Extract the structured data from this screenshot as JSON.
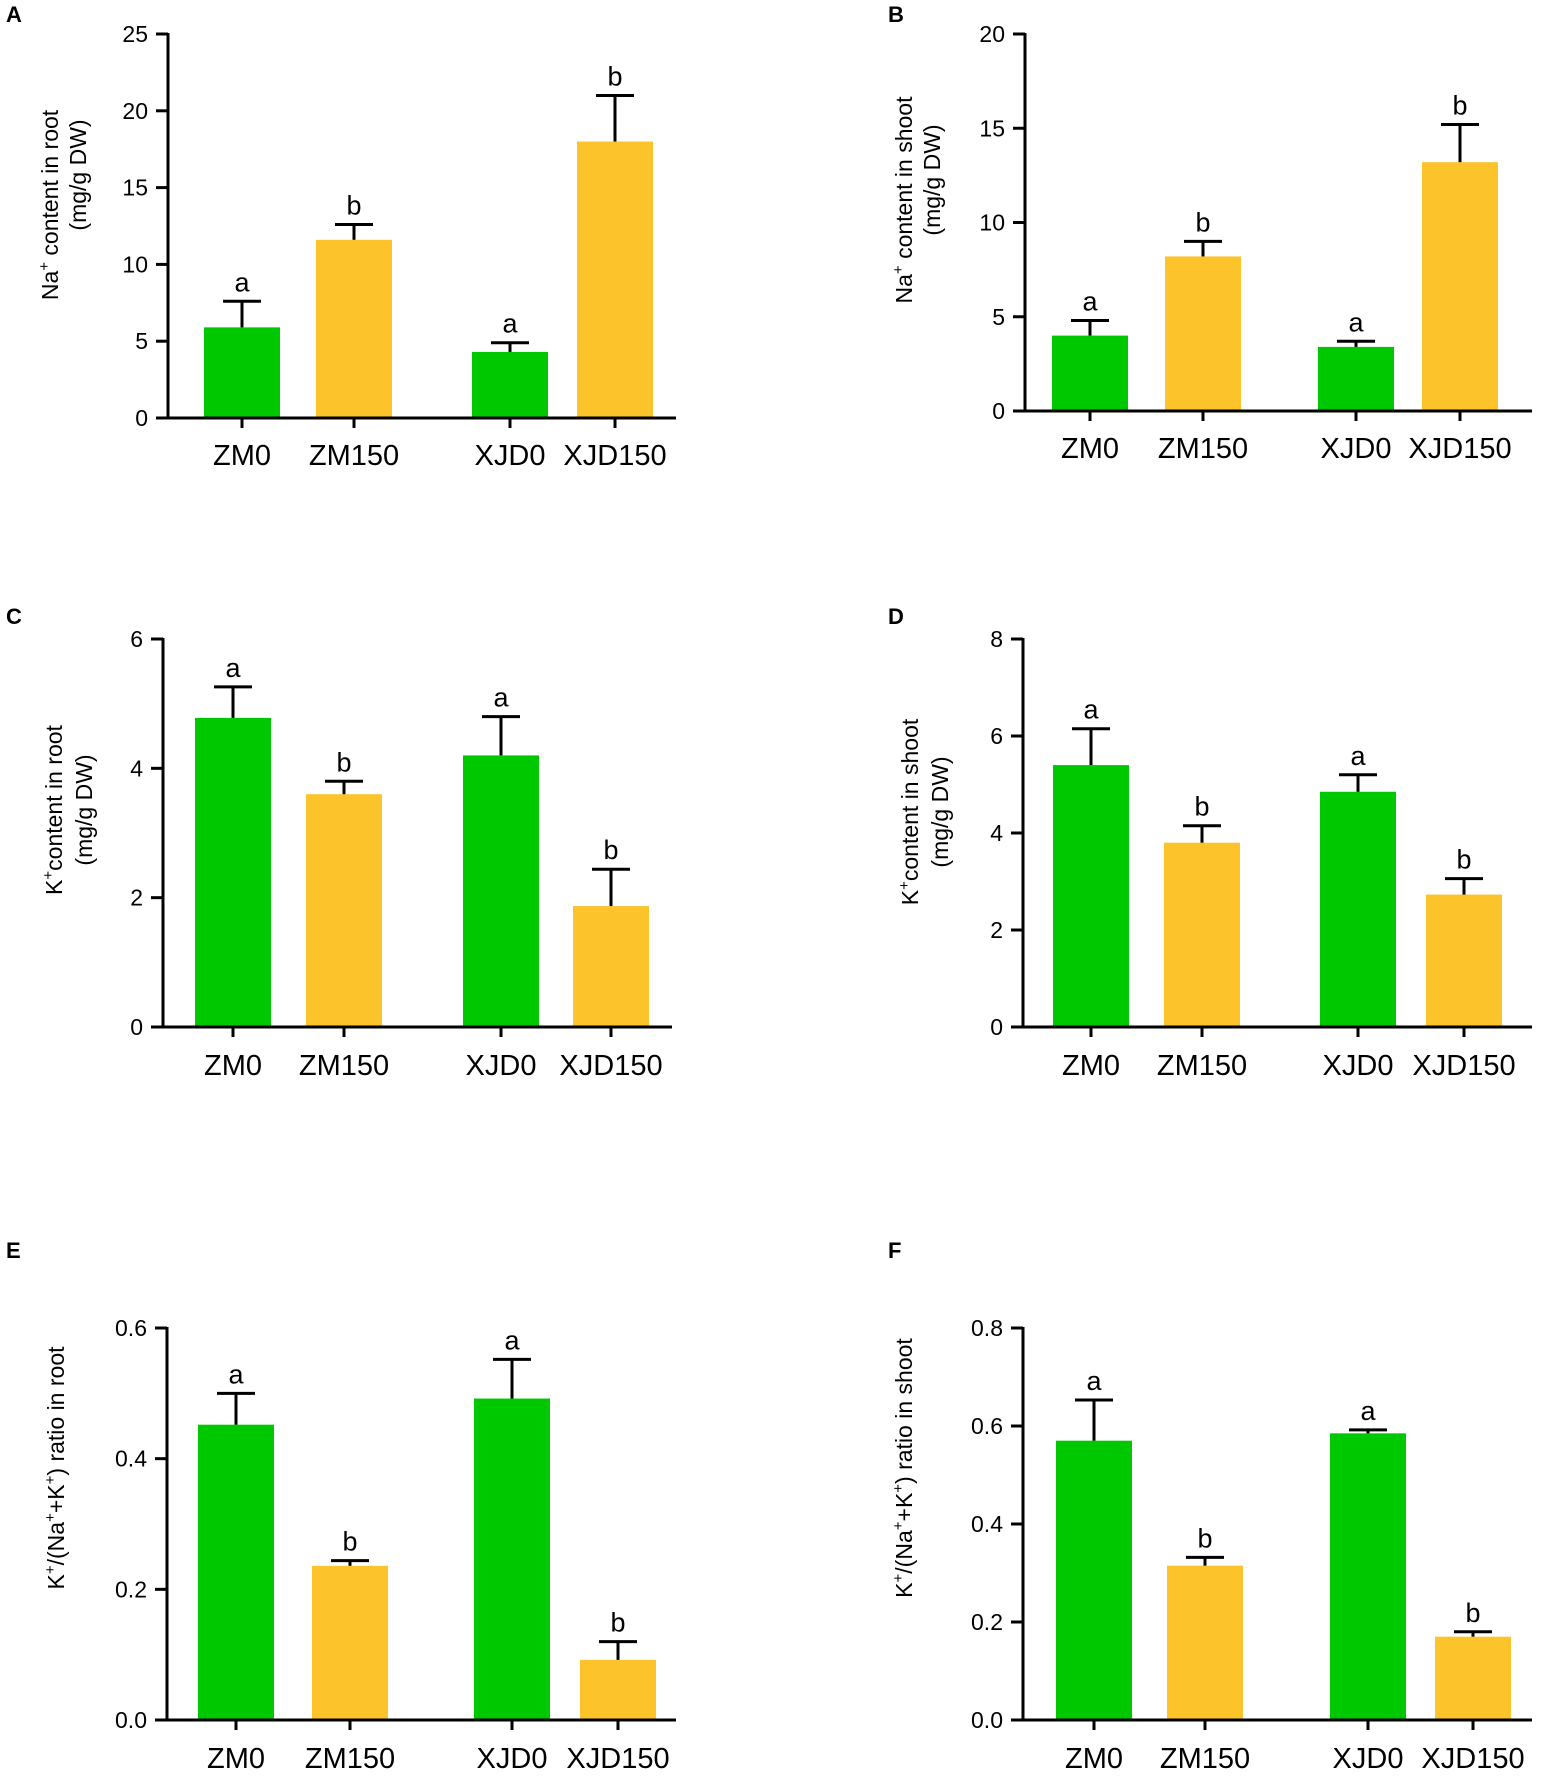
{
  "colors": {
    "green": "#00c800",
    "yellow": "#fcc32b",
    "axis": "#000000"
  },
  "chart_data": [
    {
      "panel": "A",
      "type": "bar",
      "categories": [
        "ZM0",
        "ZM150",
        "XJD0",
        "XJD150"
      ],
      "values": [
        5.9,
        11.6,
        4.3,
        18.0
      ],
      "errors": [
        1.7,
        1.0,
        0.6,
        3.0
      ],
      "significance": [
        "a",
        "b",
        "a",
        "b"
      ],
      "ylim": [
        0,
        25
      ],
      "yticks": [
        0,
        5,
        10,
        15,
        20,
        25
      ],
      "ylabel": {
        "pre": "Na",
        "sup": "+",
        "post": " content in root",
        "line2": "(mg/g DW)"
      }
    },
    {
      "panel": "B",
      "type": "bar",
      "categories": [
        "ZM0",
        "ZM150",
        "XJD0",
        "XJD150"
      ],
      "values": [
        4.0,
        8.2,
        3.4,
        13.2
      ],
      "errors": [
        0.8,
        0.8,
        0.3,
        2.0
      ],
      "significance": [
        "a",
        "b",
        "a",
        "b"
      ],
      "ylim": [
        0,
        20
      ],
      "yticks": [
        0,
        5,
        10,
        15,
        20
      ],
      "ylabel": {
        "pre": "Na",
        "sup": "+",
        "post": " content in shoot",
        "line2": "(mg/g DW)"
      }
    },
    {
      "panel": "C",
      "type": "bar",
      "categories": [
        "ZM0",
        "ZM150",
        "XJD0",
        "XJD150"
      ],
      "values": [
        4.78,
        3.6,
        4.2,
        1.87
      ],
      "errors": [
        0.48,
        0.2,
        0.6,
        0.57
      ],
      "significance": [
        "a",
        "b",
        "a",
        "b"
      ],
      "ylim": [
        0,
        6
      ],
      "yticks": [
        0,
        2,
        4,
        6
      ],
      "ylabel": {
        "pre": "K",
        "sup": "+",
        "post": "content in root",
        "line2": "(mg/g DW)"
      }
    },
    {
      "panel": "D",
      "type": "bar",
      "categories": [
        "ZM0",
        "ZM150",
        "XJD0",
        "XJD150"
      ],
      "values": [
        5.4,
        3.8,
        4.85,
        2.73
      ],
      "errors": [
        0.75,
        0.35,
        0.35,
        0.33
      ],
      "significance": [
        "a",
        "b",
        "a",
        "b"
      ],
      "ylim": [
        0,
        8
      ],
      "yticks": [
        0,
        2,
        4,
        6,
        8
      ],
      "ylabel": {
        "pre": "K",
        "sup": "+",
        "post": "content in shoot",
        "line2": "(mg/g DW)"
      }
    },
    {
      "panel": "E",
      "type": "bar",
      "categories": [
        "ZM0",
        "ZM150",
        "XJD0",
        "XJD150"
      ],
      "values": [
        0.452,
        0.236,
        0.492,
        0.092
      ],
      "errors": [
        0.048,
        0.008,
        0.06,
        0.028
      ],
      "significance": [
        "a",
        "b",
        "a",
        "b"
      ],
      "ylim": [
        0,
        0.6
      ],
      "yticks": [
        "0.0",
        "0.2",
        "0.4",
        "0.6"
      ],
      "ylabel": {
        "pre": "K",
        "sup": "+",
        "post": "/(Na",
        "sup2": "+",
        "mid": "+K",
        "sup3": "+",
        "end": ") ratio in root"
      }
    },
    {
      "panel": "F",
      "type": "bar",
      "categories": [
        "ZM0",
        "ZM150",
        "XJD0",
        "XJD150"
      ],
      "values": [
        0.57,
        0.315,
        0.585,
        0.17
      ],
      "errors": [
        0.083,
        0.017,
        0.007,
        0.01
      ],
      "significance": [
        "a",
        "b",
        "a",
        "b"
      ],
      "ylim": [
        0,
        0.8
      ],
      "yticks": [
        "0.0",
        "0.2",
        "0.4",
        "0.6",
        "0.8"
      ],
      "ylabel": {
        "pre": "K",
        "sup": "+",
        "post": "/(Na",
        "sup2": "+",
        "mid": "+K",
        "sup3": "+",
        "end": ") ratio in shoot"
      }
    }
  ]
}
